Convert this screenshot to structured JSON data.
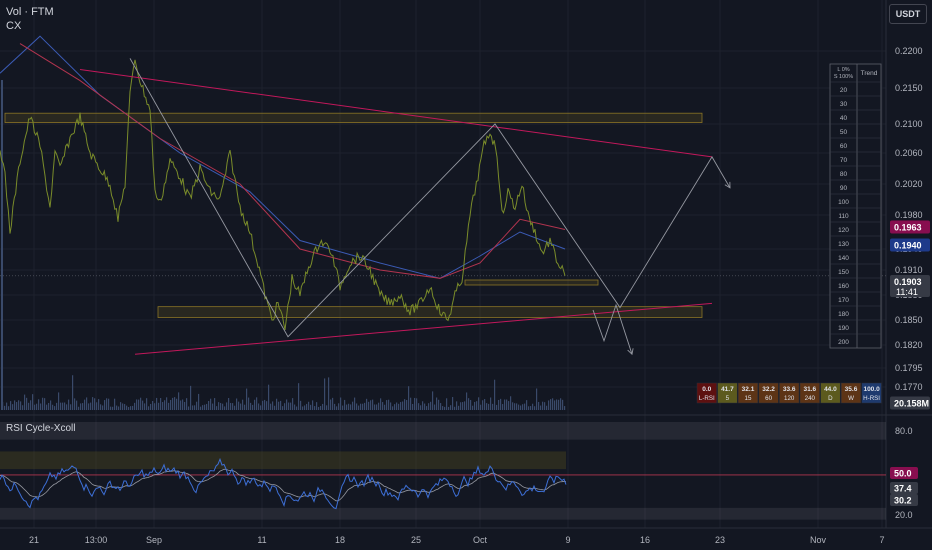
{
  "header": {
    "pair": "Vol · FTM",
    "indicator": "CX"
  },
  "currency_button": "USDT",
  "price_axis": {
    "ticks": [
      "0.2200",
      "0.2150",
      "0.2100",
      "0.2060",
      "0.2020",
      "0.1980",
      "0.1940",
      "0.1910",
      "0.1880",
      "0.1850",
      "0.1820",
      "0.1795",
      "0.1770"
    ],
    "badges": [
      {
        "label": "0.1963",
        "color": "#880e4f"
      },
      {
        "label": "0.1940",
        "color": "#1e3a8a"
      },
      {
        "label": "0.1903",
        "sub": "11:41",
        "color": "#363a45"
      },
      {
        "label": "20.158M",
        "color": "#363a45"
      }
    ]
  },
  "rsi_axis": {
    "ticks": [
      "80.0",
      "20.0"
    ],
    "badges": [
      {
        "label": "50.0",
        "color": "#880e4f"
      },
      {
        "label": "37.4",
        "color": "#363a45"
      },
      {
        "label": "30.2",
        "color": "#363a45"
      }
    ]
  },
  "time_axis": {
    "labels": [
      "21",
      "13:00",
      "Sep",
      "11",
      "18",
      "25",
      "Oct",
      "9",
      "16",
      "23",
      "Nov",
      "7"
    ]
  },
  "rsi_panel": {
    "title": "RSI Cycle-Xcoll"
  },
  "trend_table": {
    "header_left": "L 0%\nS 100%",
    "header_right": "Trend",
    "rows": [
      "20",
      "30",
      "40",
      "50",
      "60",
      "70",
      "80",
      "90",
      "100",
      "110",
      "120",
      "130",
      "140",
      "150",
      "160",
      "170",
      "180",
      "190",
      "200"
    ]
  },
  "rsi_strip": [
    {
      "value": "0.0",
      "label": "L-RSI",
      "color": "#5d1010"
    },
    {
      "value": "41.7",
      "label": "5",
      "color": "#5c5a1e"
    },
    {
      "value": "32.1",
      "label": "15",
      "color": "#5d3416"
    },
    {
      "value": "32.2",
      "label": "60",
      "color": "#5d3416"
    },
    {
      "value": "33.6",
      "label": "120",
      "color": "#5d3416"
    },
    {
      "value": "31.6",
      "label": "240",
      "color": "#5d3416"
    },
    {
      "value": "44.0",
      "label": "D",
      "color": "#5c5a1e"
    },
    {
      "value": "35.6",
      "label": "W",
      "color": "#5d3416"
    },
    {
      "value": "100.0",
      "label": "H-RSI",
      "color": "#1e3a6e"
    }
  ],
  "colors": {
    "background": "#131722",
    "price": "#7a8c2a",
    "ema_blue": "#3b5bb5",
    "ema_red": "#b2344f",
    "trend_line": "#c2185b",
    "rsi": "#3d6fd6",
    "zone": "#6b5b1c"
  },
  "chart_data": {
    "type": "line",
    "title": "",
    "y_range": [
      0.176,
      0.223
    ],
    "x_range_labels": [
      "21",
      "13:00",
      "Sep",
      "11",
      "18",
      "25",
      "Oct",
      "9",
      "16",
      "23",
      "Nov",
      "7"
    ],
    "price_path": [
      [
        0,
        0.207
      ],
      [
        5,
        0.203
      ],
      [
        10,
        0.196
      ],
      [
        20,
        0.205
      ],
      [
        30,
        0.211
      ],
      [
        40,
        0.207
      ],
      [
        45,
        0.203
      ],
      [
        50,
        0.199
      ],
      [
        55,
        0.206
      ],
      [
        60,
        0.204
      ],
      [
        70,
        0.208
      ],
      [
        80,
        0.211
      ],
      [
        90,
        0.206
      ],
      [
        100,
        0.204
      ],
      [
        110,
        0.202
      ],
      [
        118,
        0.1975
      ],
      [
        125,
        0.202
      ],
      [
        130,
        0.214
      ],
      [
        135,
        0.219
      ],
      [
        140,
        0.216
      ],
      [
        150,
        0.212
      ],
      [
        155,
        0.201
      ],
      [
        160,
        0.1995
      ],
      [
        170,
        0.205
      ],
      [
        180,
        0.203
      ],
      [
        190,
        0.2
      ],
      [
        200,
        0.204
      ],
      [
        210,
        0.201
      ],
      [
        220,
        0.2
      ],
      [
        230,
        0.206
      ],
      [
        240,
        0.199
      ],
      [
        250,
        0.196
      ],
      [
        258,
        0.192
      ],
      [
        265,
        0.188
      ],
      [
        272,
        0.185
      ],
      [
        278,
        0.187
      ],
      [
        285,
        0.184
      ],
      [
        292,
        0.19
      ],
      [
        300,
        0.188
      ],
      [
        310,
        0.192
      ],
      [
        320,
        0.195
      ],
      [
        330,
        0.194
      ],
      [
        340,
        0.189
      ],
      [
        350,
        0.192
      ],
      [
        360,
        0.193
      ],
      [
        370,
        0.191
      ],
      [
        380,
        0.188
      ],
      [
        390,
        0.187
      ],
      [
        400,
        0.188
      ],
      [
        410,
        0.186
      ],
      [
        420,
        0.187
      ],
      [
        430,
        0.189
      ],
      [
        440,
        0.186
      ],
      [
        448,
        0.185
      ],
      [
        455,
        0.188
      ],
      [
        462,
        0.19
      ],
      [
        470,
        0.198
      ],
      [
        478,
        0.203
      ],
      [
        484,
        0.207
      ],
      [
        490,
        0.209
      ],
      [
        497,
        0.206
      ],
      [
        502,
        0.198
      ],
      [
        508,
        0.201
      ],
      [
        515,
        0.199
      ],
      [
        522,
        0.202
      ],
      [
        528,
        0.198
      ],
      [
        535,
        0.196
      ],
      [
        542,
        0.1935
      ],
      [
        550,
        0.195
      ],
      [
        558,
        0.192
      ],
      [
        565,
        0.1903
      ]
    ],
    "ema_blue_path": [
      [
        0,
        0.217
      ],
      [
        40,
        0.222
      ],
      [
        100,
        0.214
      ],
      [
        180,
        0.206
      ],
      [
        250,
        0.201
      ],
      [
        300,
        0.195
      ],
      [
        380,
        0.192
      ],
      [
        440,
        0.19
      ],
      [
        480,
        0.193
      ],
      [
        520,
        0.196
      ],
      [
        565,
        0.194
      ]
    ],
    "ema_red_path": [
      [
        20,
        0.221
      ],
      [
        80,
        0.216
      ],
      [
        160,
        0.208
      ],
      [
        240,
        0.202
      ],
      [
        300,
        0.194
      ],
      [
        380,
        0.191
      ],
      [
        440,
        0.19
      ],
      [
        480,
        0.192
      ],
      [
        520,
        0.1975
      ],
      [
        565,
        0.1963
      ]
    ],
    "trend_lines": [
      {
        "color": "#c2185b",
        "from": [
          80,
          0.2175
        ],
        "to": [
          712,
          0.2055
        ]
      },
      {
        "color": "#c2185b",
        "from": [
          135,
          0.181
        ],
        "to": [
          712,
          0.187
        ]
      }
    ],
    "projection_lines": [
      {
        "points": [
          [
            130,
            0.219
          ],
          [
            288,
            0.183
          ],
          [
            495,
            0.21
          ],
          [
            620,
            0.1865
          ],
          [
            712,
            0.2055
          ],
          [
            730,
            0.2015
          ]
        ]
      },
      {
        "points": [
          [
            593,
            0.1862
          ],
          [
            604,
            0.1825
          ],
          [
            616,
            0.1868
          ],
          [
            632,
            0.181
          ]
        ]
      }
    ],
    "zones": [
      {
        "x0": 5,
        "x1": 702,
        "y_top": 0.2115,
        "y_bottom": 0.2102
      },
      {
        "x0": 158,
        "x1": 702,
        "y_top": 0.1866,
        "y_bottom": 0.1853
      },
      {
        "x0": 465,
        "x1": 598,
        "y_top": 0.1898,
        "y_bottom": 0.1892
      }
    ],
    "rsi_range": [
      10,
      95
    ],
    "rsi_bands": [
      80,
      50,
      20
    ]
  }
}
